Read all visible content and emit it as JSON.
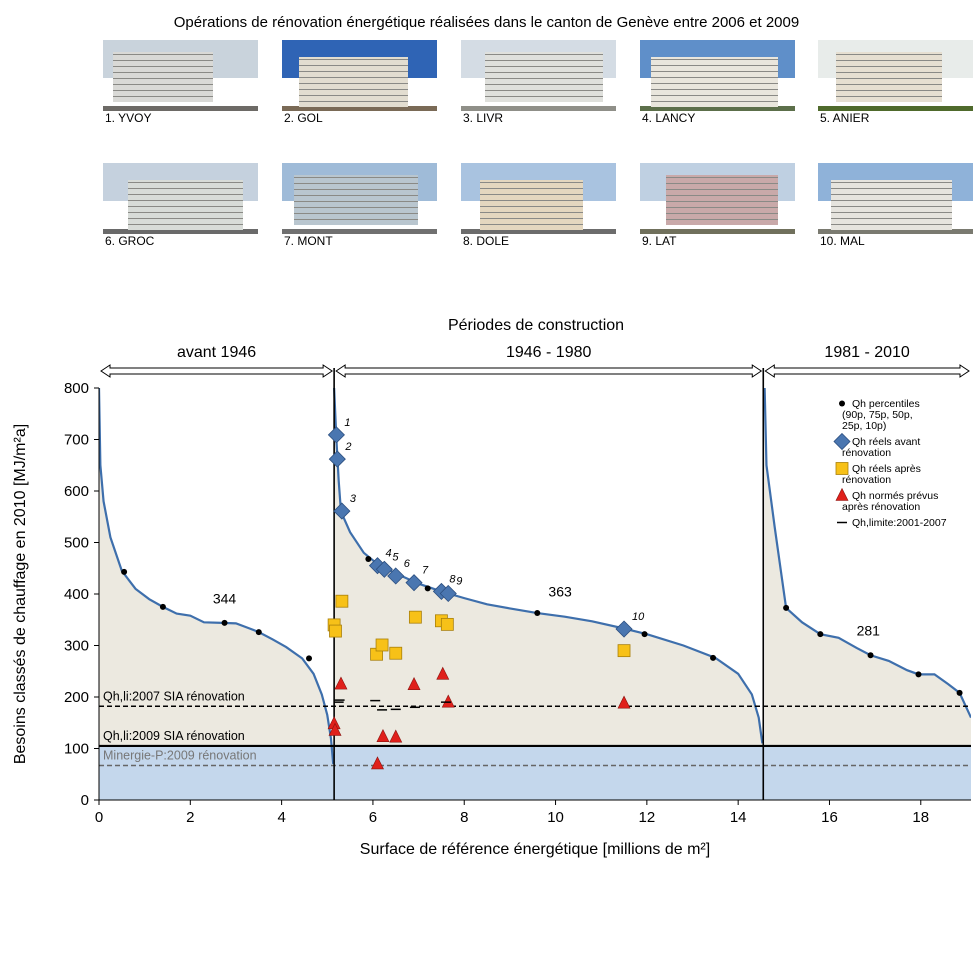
{
  "figure": {
    "title": "Opérations de rénovation énergétique réalisées dans le canton de Genève entre 2006 et 2009",
    "photos": [
      {
        "label": "1. YVOY",
        "sky": "#c9d3dc",
        "building": "#d9d9d6",
        "ground": "#6d6a66"
      },
      {
        "label": "2. GOL",
        "sky": "#2f64b5",
        "building": "#e2ddd0",
        "ground": "#7a6a56"
      },
      {
        "label": "3. LIVR",
        "sky": "#d4dce4",
        "building": "#dfe0dc",
        "ground": "#8f8f88"
      },
      {
        "label": "4. LANCY",
        "sky": "#5f8fc9",
        "building": "#e9e6dd",
        "ground": "#5c6f4a"
      },
      {
        "label": "5. ANIER",
        "sky": "#e8ecea",
        "building": "#e6dfd1",
        "ground": "#4f6a2c"
      },
      {
        "label": "6. GROC",
        "sky": "#c5d1de",
        "building": "#d8dcd8",
        "ground": "#6a6a6a"
      },
      {
        "label": "7. MONT",
        "sky": "#9fbbd8",
        "building": "#b9c6cf",
        "ground": "#707070"
      },
      {
        "label": "8. DOLE",
        "sky": "#a9c3e0",
        "building": "#e4d7bf",
        "ground": "#6c6c6c"
      },
      {
        "label": "9. LAT",
        "sky": "#bfd0e2",
        "building": "#c9a9a9",
        "ground": "#70705c"
      },
      {
        "label": "10. MAL",
        "sky": "#8fb2d9",
        "building": "#e6e4de",
        "ground": "#7a7a70"
      }
    ]
  },
  "chart_data": {
    "type": "line",
    "title": "Périodes de construction",
    "xlabel": "Surface de référence énergétique [millions de m²]",
    "ylabel": "Besoins classés de chauffage en 2010 [MJ/m²a]",
    "xlim": [
      0,
      19.1
    ],
    "ylim": [
      0,
      800
    ],
    "xticks": [
      0,
      2,
      4,
      6,
      8,
      10,
      12,
      14,
      16,
      18
    ],
    "yticks": [
      0,
      100,
      200,
      300,
      400,
      500,
      600,
      700,
      800
    ],
    "periods": [
      {
        "label": "avant 1946",
        "x_start": 0,
        "x_end": 5.15
      },
      {
        "label": "1946 - 1980",
        "x_start": 5.15,
        "x_end": 14.55
      },
      {
        "label": "1981 - 2010",
        "x_start": 14.55,
        "x_end": 19.1
      }
    ],
    "curves": [
      {
        "period": "avant 1946",
        "mean_label": "344",
        "mean_label_at": [
          2.75,
          382
        ],
        "points": [
          [
            0,
            800
          ],
          [
            0.03,
            650
          ],
          [
            0.1,
            580
          ],
          [
            0.25,
            510
          ],
          [
            0.5,
            445
          ],
          [
            0.8,
            410
          ],
          [
            1.1,
            390
          ],
          [
            1.4,
            375
          ],
          [
            1.7,
            362
          ],
          [
            2.0,
            358
          ],
          [
            2.3,
            345
          ],
          [
            2.7,
            344
          ],
          [
            3.0,
            343
          ],
          [
            3.3,
            333
          ],
          [
            3.5,
            326
          ],
          [
            3.8,
            312
          ],
          [
            4.1,
            297
          ],
          [
            4.45,
            275
          ],
          [
            4.7,
            245
          ],
          [
            4.88,
            205
          ],
          [
            5.0,
            165
          ],
          [
            5.08,
            120
          ],
          [
            5.13,
            70
          ]
        ]
      },
      {
        "period": "1946 - 1980",
        "mean_label": "363",
        "mean_label_at": [
          10.1,
          395
        ],
        "points": [
          [
            5.15,
            800
          ],
          [
            5.2,
            700
          ],
          [
            5.25,
            620
          ],
          [
            5.3,
            560
          ],
          [
            5.5,
            520
          ],
          [
            5.8,
            480
          ],
          [
            6.1,
            458
          ],
          [
            6.5,
            440
          ],
          [
            7.0,
            420
          ],
          [
            7.5,
            405
          ],
          [
            8.0,
            392
          ],
          [
            8.5,
            380
          ],
          [
            9.0,
            372
          ],
          [
            9.6,
            363
          ],
          [
            10.2,
            356
          ],
          [
            10.8,
            347
          ],
          [
            11.5,
            333
          ],
          [
            12.0,
            322
          ],
          [
            12.8,
            300
          ],
          [
            13.5,
            276
          ],
          [
            14.0,
            245
          ],
          [
            14.3,
            205
          ],
          [
            14.45,
            160
          ],
          [
            14.53,
            110
          ]
        ]
      },
      {
        "period": "1981 - 2010",
        "mean_label": "281",
        "mean_label_at": [
          16.85,
          319
        ],
        "points": [
          [
            14.58,
            800
          ],
          [
            14.62,
            650
          ],
          [
            14.8,
            530
          ],
          [
            15.05,
            373
          ],
          [
            15.4,
            345
          ],
          [
            15.8,
            322
          ],
          [
            16.2,
            315
          ],
          [
            16.6,
            295
          ],
          [
            16.9,
            281
          ],
          [
            17.3,
            270
          ],
          [
            17.7,
            252
          ],
          [
            17.95,
            244
          ],
          [
            18.3,
            244
          ],
          [
            18.6,
            225
          ],
          [
            18.85,
            208
          ],
          [
            19.1,
            160
          ]
        ]
      }
    ],
    "series": [
      {
        "name": "Qh percentiles (90p, 75p, 50p, 25p, 10p)",
        "marker": "dot",
        "color": "#000000",
        "points": [
          [
            0.55,
            443
          ],
          [
            1.4,
            375
          ],
          [
            2.75,
            344
          ],
          [
            3.5,
            326
          ],
          [
            4.6,
            275
          ],
          [
            5.9,
            468
          ],
          [
            7.2,
            411
          ],
          [
            9.6,
            363
          ],
          [
            11.95,
            322
          ],
          [
            13.45,
            276
          ],
          [
            15.05,
            373
          ],
          [
            15.8,
            322
          ],
          [
            16.9,
            281
          ],
          [
            17.95,
            244
          ],
          [
            18.85,
            208
          ]
        ]
      },
      {
        "name": "Qh réels avant rénovation",
        "marker": "diamond",
        "color": "#4a76b0",
        "points": [
          [
            5.2,
            709,
            "1"
          ],
          [
            5.22,
            662,
            "2"
          ],
          [
            5.32,
            561,
            "3"
          ],
          [
            6.1,
            455,
            "4"
          ],
          [
            6.25,
            448,
            "5"
          ],
          [
            6.5,
            435,
            "6"
          ],
          [
            6.9,
            422,
            "7"
          ],
          [
            7.5,
            405,
            "8"
          ],
          [
            7.65,
            401,
            "9"
          ],
          [
            11.5,
            332,
            "10"
          ]
        ]
      },
      {
        "name": "Qh réels après rénovation",
        "marker": "square",
        "color": "#f7c118",
        "points": [
          [
            5.15,
            340
          ],
          [
            5.18,
            328
          ],
          [
            5.32,
            386
          ],
          [
            6.08,
            283
          ],
          [
            6.2,
            301
          ],
          [
            6.5,
            285
          ],
          [
            6.93,
            355
          ],
          [
            7.5,
            348
          ],
          [
            7.63,
            341
          ],
          [
            11.5,
            290
          ]
        ]
      },
      {
        "name": "Qh normés prévus après rénovation",
        "marker": "triangle",
        "color": "#e0201b",
        "points": [
          [
            5.15,
            148
          ],
          [
            5.17,
            135
          ],
          [
            5.3,
            225
          ],
          [
            6.1,
            70
          ],
          [
            6.22,
            123
          ],
          [
            6.5,
            122
          ],
          [
            6.9,
            224
          ],
          [
            7.53,
            244
          ],
          [
            7.65,
            190
          ],
          [
            11.5,
            188
          ]
        ]
      },
      {
        "name": "Qh,limite:2001-2007",
        "marker": "dash",
        "color": "#000000",
        "points": [
          [
            5.25,
            190
          ],
          [
            5.27,
            194
          ],
          [
            6.05,
            193
          ],
          [
            6.2,
            175
          ],
          [
            6.5,
            176
          ],
          [
            6.92,
            180
          ],
          [
            7.6,
            190
          ]
        ]
      }
    ],
    "reference_lines": [
      {
        "label": "Qh,li:2007 SIA rénovation",
        "y": 182,
        "style": "dashed",
        "color": "#000000"
      },
      {
        "label": "Qh,li:2009 SIA rénovation",
        "y": 105,
        "style": "solid",
        "color": "#000000"
      },
      {
        "label": "Minergie-P:2009 rénovation",
        "y": 67,
        "style": "dashed",
        "color": "#666666"
      }
    ],
    "fill_colors": {
      "area": "#ece9e0",
      "minergie_band": "#c4d7ec",
      "curve": "#3e6fac"
    }
  }
}
